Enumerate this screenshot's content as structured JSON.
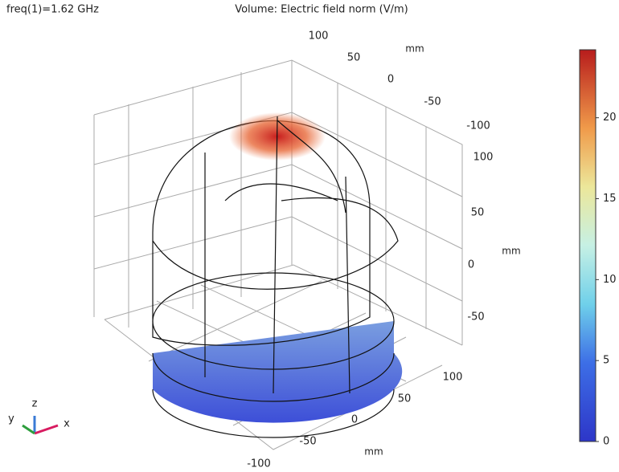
{
  "chart_data": {
    "type": "volume",
    "title": "Volume: Electric field norm (V/m)",
    "subtitle": "freq(1)=1.62 GHz",
    "colorbar": {
      "clim": [
        0,
        24.2
      ],
      "ticks": [
        0,
        5,
        10,
        15,
        20
      ]
    },
    "axes": {
      "y": {
        "ticks": [
          100,
          50,
          0,
          -50,
          -100
        ],
        "unit": "mm"
      },
      "z": {
        "ticks": [
          100,
          50,
          0,
          -50
        ],
        "unit": "mm"
      },
      "x": {
        "ticks": [
          100,
          50,
          0,
          -50,
          -100
        ],
        "unit": "mm"
      }
    },
    "triad": {
      "x": "x",
      "y": "y",
      "z": "z"
    }
  }
}
